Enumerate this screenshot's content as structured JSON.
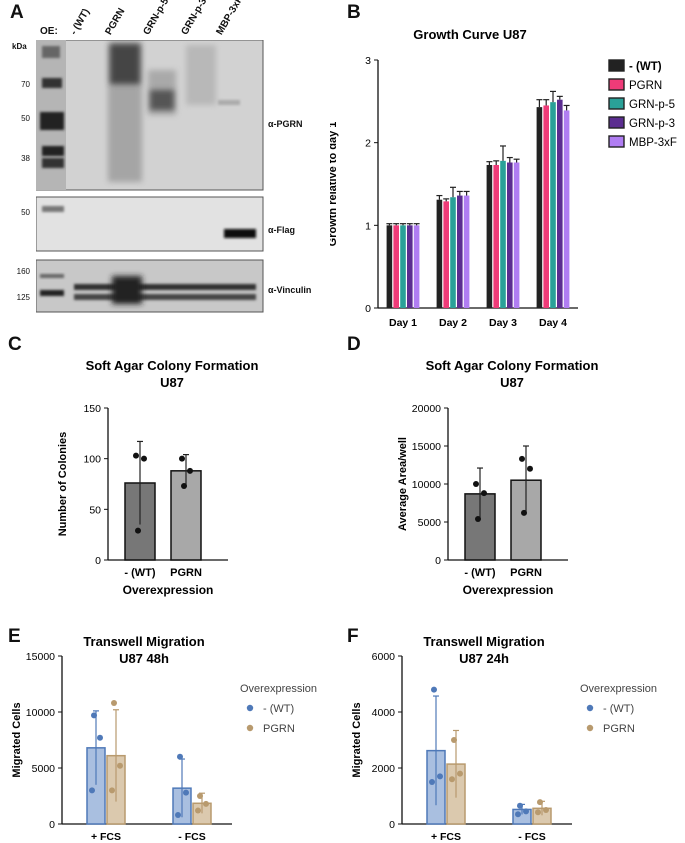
{
  "panels": {
    "A": "A",
    "B": "B",
    "C": "C",
    "D": "D",
    "E": "E",
    "F": "F"
  },
  "blot": {
    "oe_label": "OE:",
    "kda_label": "kDa",
    "lanes": [
      "- (WT)",
      "PGRN",
      "GRN-p-5",
      "GRN-p-3",
      "MBP-3xF"
    ],
    "markers_top": [
      "70",
      "50",
      "38"
    ],
    "markers_mid": [
      "50"
    ],
    "markers_bot": [
      "160",
      "125"
    ],
    "antibodies": [
      "α-PGRN",
      "α-Flag",
      "α-Vinculin"
    ]
  },
  "chart_data": [
    {
      "id": "B",
      "type": "bar",
      "title": "Growth Curve U87",
      "xlabel": "",
      "ylabel": "Growth relative to day 1",
      "categories": [
        "Day 1",
        "Day 2",
        "Day 3",
        "Day 4"
      ],
      "ylim": [
        0,
        3
      ],
      "yticks": [
        "0",
        "1",
        "2",
        "3"
      ],
      "series": [
        {
          "name": "- (WT)",
          "color": "#222222",
          "values": [
            1.0,
            1.31,
            1.73,
            2.43
          ],
          "errors": [
            0.02,
            0.05,
            0.04,
            0.09
          ]
        },
        {
          "name": "PGRN",
          "color": "#ef3b78",
          "values": [
            1.0,
            1.29,
            1.73,
            2.45
          ],
          "errors": [
            0.02,
            0.03,
            0.05,
            0.07
          ]
        },
        {
          "name": "GRN-p-5",
          "color": "#2aa198",
          "values": [
            1.0,
            1.34,
            1.78,
            2.49
          ],
          "errors": [
            0.02,
            0.12,
            0.18,
            0.13
          ]
        },
        {
          "name": "GRN-p-3",
          "color": "#5b2d90",
          "values": [
            1.0,
            1.36,
            1.76,
            2.52
          ],
          "errors": [
            0.02,
            0.05,
            0.06,
            0.04
          ]
        },
        {
          "name": "MBP-3xF",
          "color": "#b07df2",
          "values": [
            1.0,
            1.36,
            1.76,
            2.39
          ],
          "errors": [
            0.02,
            0.05,
            0.04,
            0.06
          ]
        }
      ]
    },
    {
      "id": "C",
      "type": "bar",
      "title": "Soft Agar Colony Formation",
      "subtitle": "U87",
      "xlabel": "Overexpression",
      "ylabel": "Number of Colonies",
      "categories": [
        "- (WT)",
        "PGRN"
      ],
      "ylim": [
        0,
        150
      ],
      "yticks": [
        "0",
        "50",
        "100",
        "150"
      ],
      "values": [
        76,
        88
      ],
      "errors": [
        41,
        16
      ],
      "colors": [
        "#777777",
        "#a8a8a8"
      ],
      "points": [
        [
          103,
          100,
          29
        ],
        [
          100,
          88,
          73
        ]
      ]
    },
    {
      "id": "D",
      "type": "bar",
      "title": "Soft Agar Colony Formation",
      "subtitle": "U87",
      "xlabel": "Overexpression",
      "ylabel": "Average Area/well",
      "categories": [
        "- (WT)",
        "PGRN"
      ],
      "ylim": [
        0,
        20000
      ],
      "yticks": [
        "0",
        "5000",
        "10000",
        "15000",
        "20000"
      ],
      "values": [
        8700,
        10500
      ],
      "errors": [
        3400,
        4500
      ],
      "colors": [
        "#777777",
        "#a8a8a8"
      ],
      "points": [
        [
          10000,
          8800,
          5400
        ],
        [
          13300,
          12000,
          6200
        ]
      ]
    },
    {
      "id": "E",
      "type": "bar",
      "title": "Transwell Migration",
      "subtitle": "U87 48h",
      "xlabel": "",
      "ylabel": "Migrated Cells",
      "categories": [
        "+ FCS",
        "- FCS"
      ],
      "ylim": [
        0,
        15000
      ],
      "yticks": [
        "0",
        "5000",
        "10000",
        "15000"
      ],
      "legend_title": "Overexpression",
      "series": [
        {
          "name": "- (WT)",
          "color": "#4f79b8",
          "fill": "#a9bfe0",
          "values": [
            6800,
            3200
          ],
          "errors": [
            3300,
            2600
          ],
          "points": [
            [
              9700,
              7700,
              3000
            ],
            [
              6000,
              2800,
              800
            ]
          ]
        },
        {
          "name": "PGRN",
          "color": "#b89a6e",
          "fill": "#dbc9ae",
          "values": [
            6100,
            1850
          ],
          "errors": [
            4100,
            900
          ],
          "points": [
            [
              10800,
              5200,
              3000
            ],
            [
              2500,
              1800,
              1200
            ]
          ]
        }
      ]
    },
    {
      "id": "F",
      "type": "bar",
      "title": "Transwell Migration",
      "subtitle": "U87 24h",
      "xlabel": "",
      "ylabel": "Migrated Cells",
      "categories": [
        "+ FCS",
        "- FCS"
      ],
      "ylim": [
        0,
        6000
      ],
      "yticks": [
        "0",
        "2000",
        "4000",
        "6000"
      ],
      "legend_title": "Overexpression",
      "series": [
        {
          "name": "- (WT)",
          "color": "#4f79b8",
          "fill": "#a9bfe0",
          "values": [
            2620,
            520
          ],
          "errors": [
            1950,
            180
          ],
          "points": [
            [
              4800,
              1700,
              1500
            ],
            [
              650,
              450,
              350
            ]
          ]
        },
        {
          "name": "PGRN",
          "color": "#b89a6e",
          "fill": "#dbc9ae",
          "values": [
            2140,
            560
          ],
          "errors": [
            1200,
            250
          ],
          "points": [
            [
              3000,
              1800,
              1600
            ],
            [
              780,
              500,
              420
            ]
          ]
        }
      ]
    }
  ]
}
